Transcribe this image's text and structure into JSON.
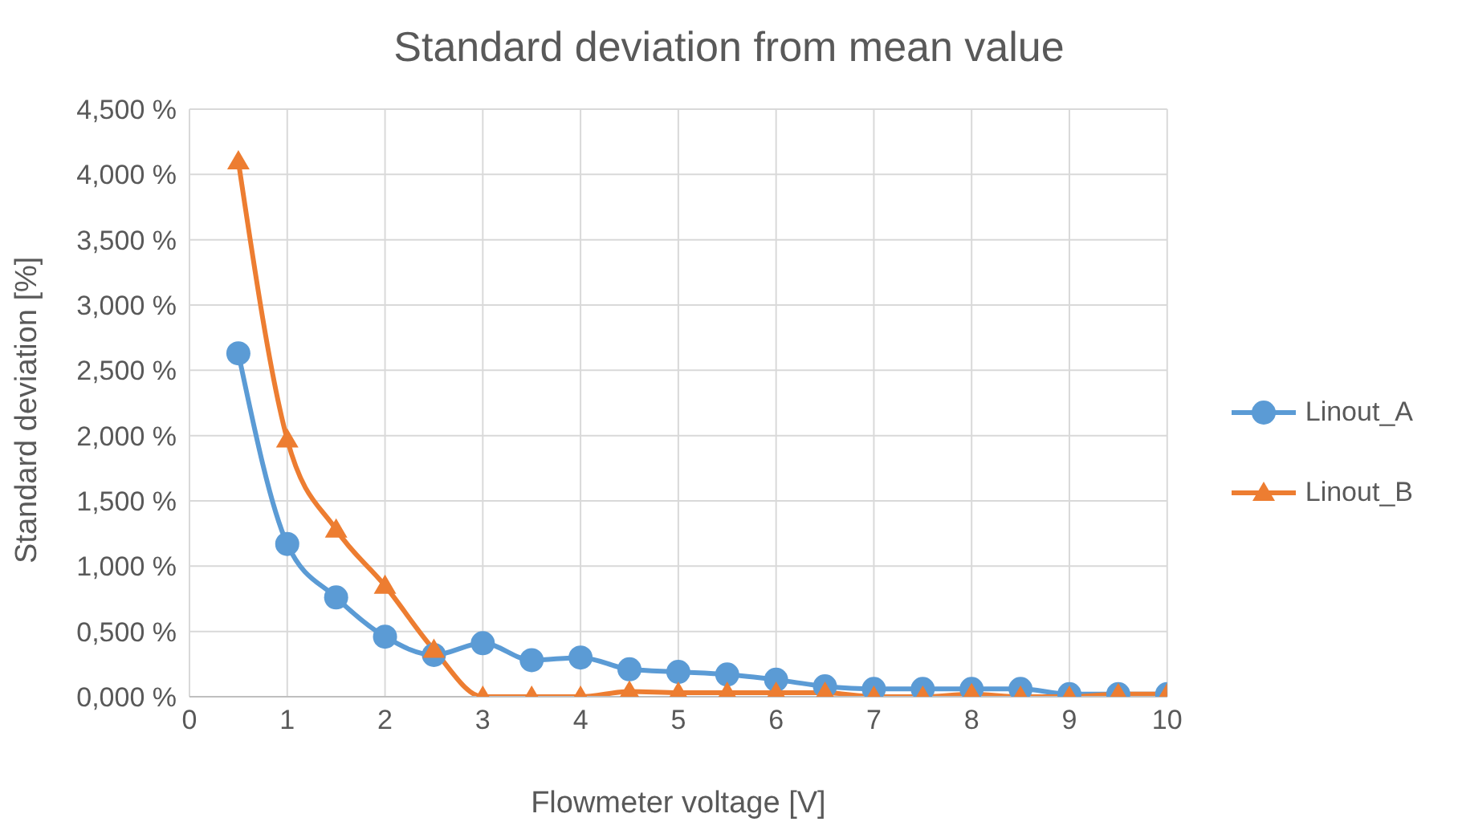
{
  "chart_data": {
    "type": "line",
    "title": "Standard deviation from mean value",
    "xlabel": "Flowmeter voltage [V]",
    "ylabel": "Standard deviation [%]",
    "x": [
      0.5,
      1,
      1.5,
      2,
      2.5,
      3,
      3.5,
      4,
      4.5,
      5,
      5.5,
      6,
      6.5,
      7,
      7.5,
      8,
      8.5,
      9,
      9.5,
      10
    ],
    "series": [
      {
        "name": "Linout_A",
        "color": "#5b9bd5",
        "marker": "circle",
        "values": [
          2.63,
          1.17,
          0.76,
          0.46,
          0.32,
          0.41,
          0.28,
          0.3,
          0.21,
          0.19,
          0.17,
          0.13,
          0.08,
          0.06,
          0.06,
          0.06,
          0.06,
          0.02,
          0.02,
          0.02
        ]
      },
      {
        "name": "Linout_B",
        "color": "#ed7d31",
        "marker": "triangle",
        "values": [
          4.1,
          1.97,
          1.28,
          0.85,
          0.36,
          0,
          0,
          0,
          0.04,
          0.03,
          0.03,
          0.03,
          0.03,
          0,
          0,
          0.02,
          0,
          0,
          0.02,
          0.02
        ]
      }
    ],
    "xlim": [
      0,
      10
    ],
    "xticks": [
      0,
      1,
      2,
      3,
      4,
      5,
      6,
      7,
      8,
      9,
      10
    ],
    "ylim": [
      0,
      4.5
    ],
    "yticks": [
      {
        "value": 0,
        "label": "0,000 %"
      },
      {
        "value": 0.5,
        "label": "0,500 %"
      },
      {
        "value": 1,
        "label": "1,000 %"
      },
      {
        "value": 1.5,
        "label": "1,500 %"
      },
      {
        "value": 2,
        "label": "2,000 %"
      },
      {
        "value": 2.5,
        "label": "2,500 %"
      },
      {
        "value": 3,
        "label": "3,000 %"
      },
      {
        "value": 3.5,
        "label": "3,500 %"
      },
      {
        "value": 4,
        "label": "4,000 %"
      },
      {
        "value": 4.5,
        "label": "4,500 %"
      }
    ],
    "grid": true,
    "legend": "right",
    "line_style": "solid"
  }
}
